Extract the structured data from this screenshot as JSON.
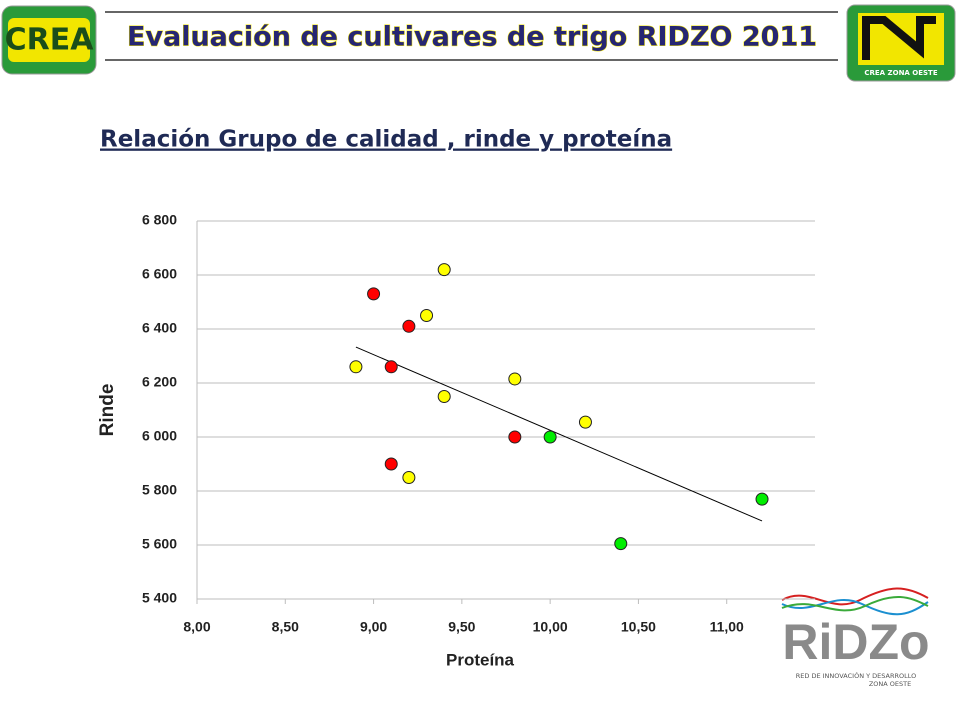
{
  "header": {
    "title": "Evaluación de cultivares de trigo RIDZO 2011",
    "left_logo": "CREA",
    "right_logo": "CREA  ZONA OESTE"
  },
  "chart_data": {
    "type": "scatter",
    "title": "Relación Grupo de calidad , rinde y proteína",
    "x_label": "Proteína",
    "y_label": "Rinde",
    "xlim": [
      8,
      11.5
    ],
    "xticks": [
      {
        "value": 8,
        "label": "8,00"
      },
      {
        "value": 8.5,
        "label": "8,50"
      },
      {
        "value": 9,
        "label": "9,00"
      },
      {
        "value": 9.5,
        "label": "9,50"
      },
      {
        "value": 10,
        "label": "10,00"
      },
      {
        "value": 10.5,
        "label": "10,50"
      },
      {
        "value": 11,
        "label": "11,00"
      }
    ],
    "ylim": [
      5400,
      6800
    ],
    "yticks": [
      {
        "value": 5400,
        "label": "5 400"
      },
      {
        "value": 5600,
        "label": "5 600"
      },
      {
        "value": 5800,
        "label": "5 800"
      },
      {
        "value": 6000,
        "label": "6 000"
      },
      {
        "value": 6200,
        "label": "6 200"
      },
      {
        "value": 6400,
        "label": "6 400"
      },
      {
        "value": 6600,
        "label": "6 600"
      },
      {
        "value": 6800,
        "label": "6 800"
      }
    ],
    "grid": true,
    "series": [
      {
        "color": "#ff0000",
        "x": [
          9.0,
          9.2,
          9.1,
          9.8,
          9.1
        ],
        "values": [
          6530,
          6410,
          6260,
          6000,
          5900
        ]
      },
      {
        "color": "#ffff00",
        "x": [
          9.4,
          9.3,
          8.9,
          9.8,
          9.4,
          10.2,
          9.2
        ],
        "values": [
          6620,
          6450,
          6260,
          6215,
          6150,
          6055,
          5850
        ]
      },
      {
        "color": "#00ee00",
        "x": [
          10.0,
          11.2,
          10.4
        ],
        "values": [
          6000,
          5770,
          5605
        ]
      }
    ],
    "trendline": {
      "color": "#000000",
      "x": [
        8.9,
        11.2
      ],
      "values": [
        6333,
        5689
      ]
    }
  },
  "footer_logo": {
    "name": "RiDZo",
    "line1": "RED DE INNOVACIÓN Y DESARROLLO",
    "line2": "ZONA OESTE"
  }
}
